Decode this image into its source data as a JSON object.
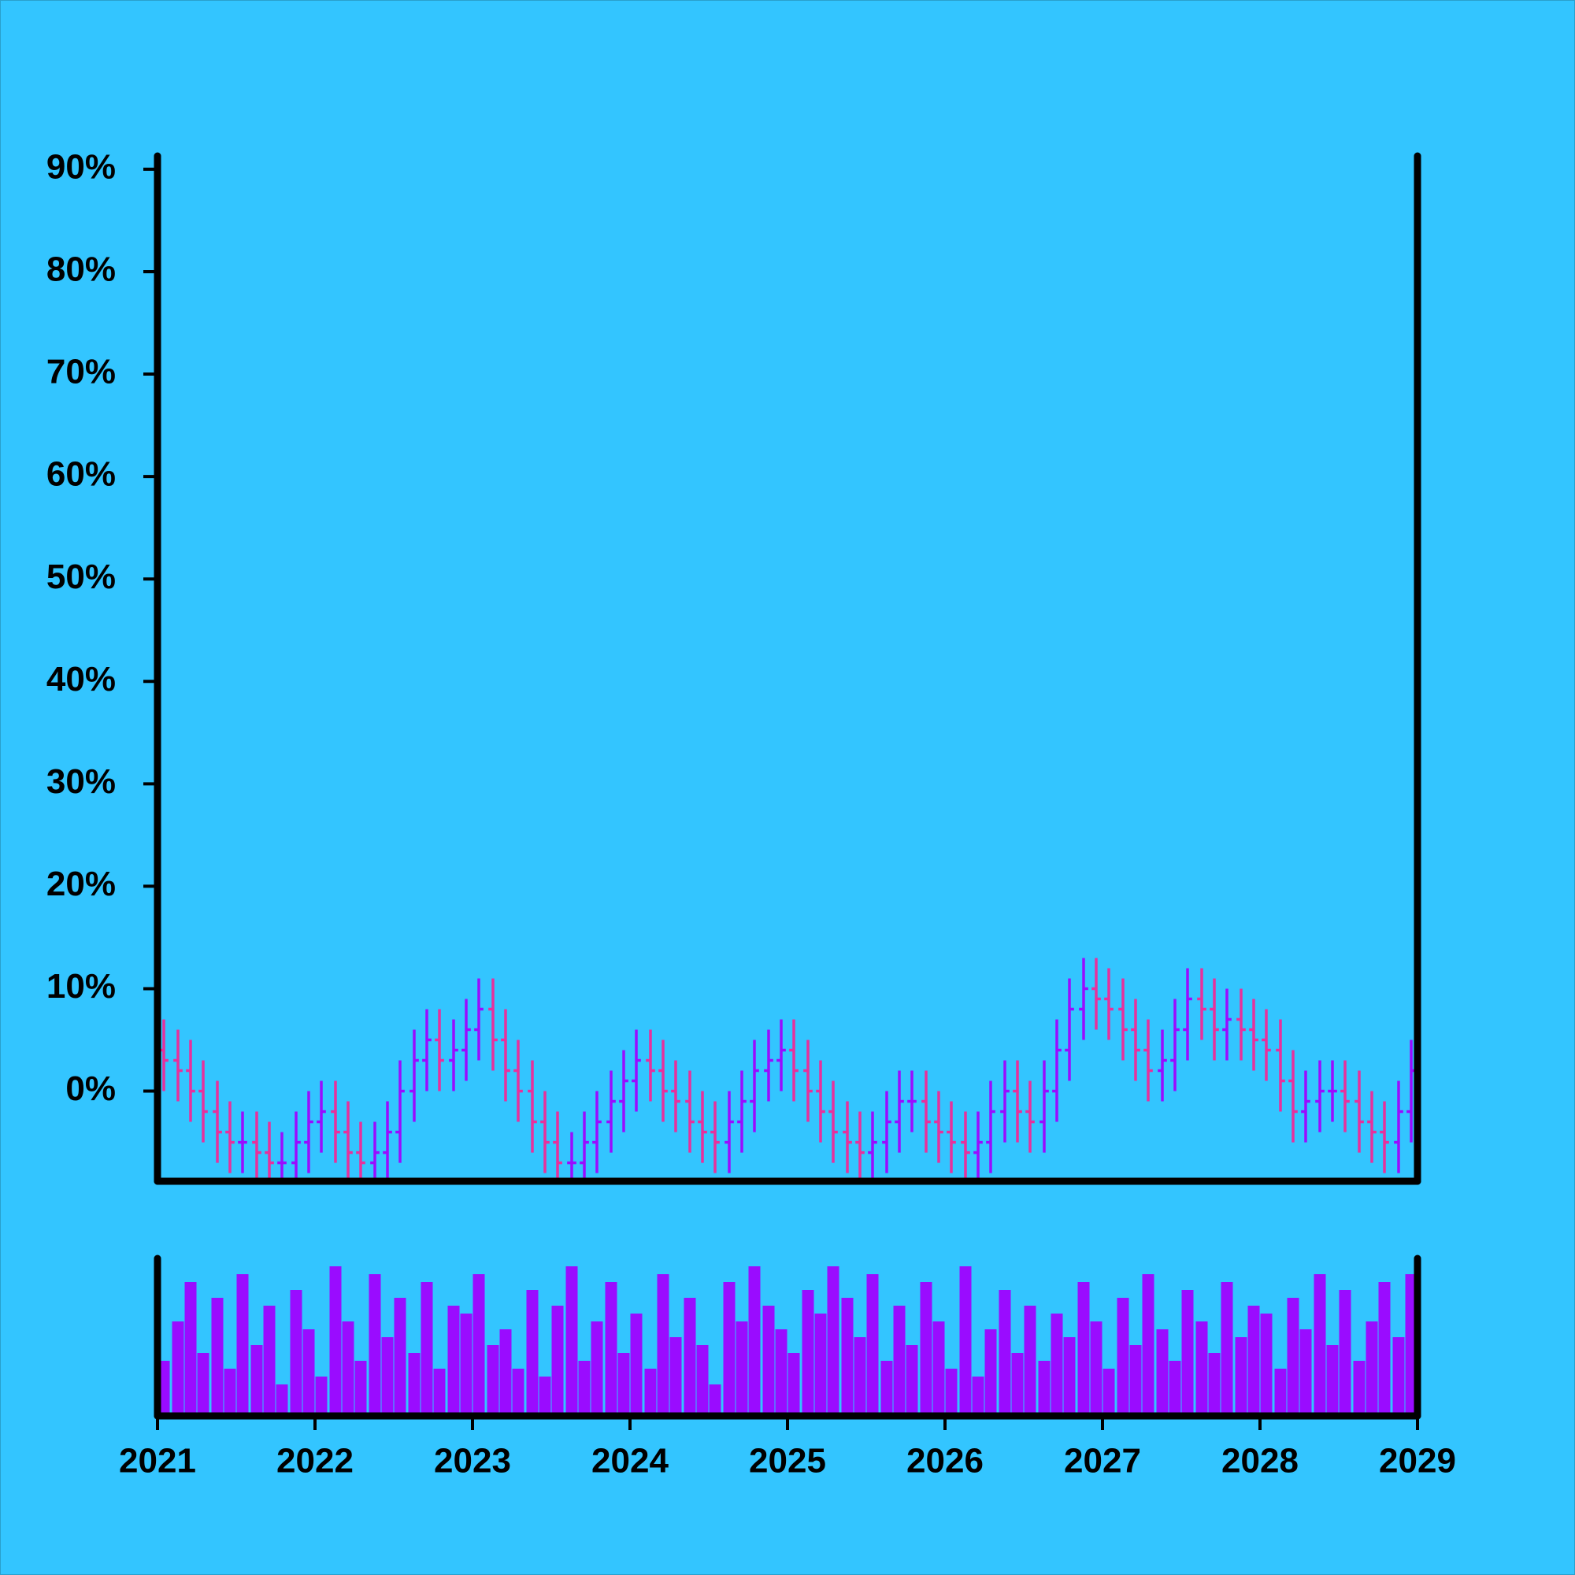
{
  "chart_data": {
    "type": "ohlc",
    "x": [
      2021.04,
      2021.13,
      2021.21,
      2021.29,
      2021.38,
      2021.46,
      2021.54,
      2021.63,
      2021.71,
      2021.79,
      2021.88,
      2021.96,
      2022.04,
      2022.13,
      2022.21,
      2022.29,
      2022.38,
      2022.46,
      2022.54,
      2022.63,
      2022.71,
      2022.79,
      2022.88,
      2022.96,
      2023.04,
      2023.13,
      2023.21,
      2023.29,
      2023.38,
      2023.46,
      2023.54,
      2023.63,
      2023.71,
      2023.79,
      2023.88,
      2023.96,
      2024.04,
      2024.13,
      2024.21,
      2024.29,
      2024.38,
      2024.46,
      2024.54,
      2024.63,
      2024.71,
      2024.79,
      2024.88,
      2024.96,
      2025.04,
      2025.13,
      2025.21,
      2025.29,
      2025.38,
      2025.46,
      2025.54,
      2025.63,
      2025.71,
      2025.79,
      2025.88,
      2025.96,
      2026.04,
      2026.13,
      2026.21,
      2026.29,
      2026.38,
      2026.46,
      2026.54,
      2026.63,
      2026.71,
      2026.79,
      2026.88,
      2026.96,
      2027.04,
      2027.13,
      2027.21,
      2027.29,
      2027.38,
      2027.46,
      2027.54,
      2027.63,
      2027.71,
      2027.79,
      2027.88,
      2027.96,
      2028.04,
      2028.13,
      2028.21,
      2028.29,
      2028.38,
      2028.46,
      2028.54,
      2028.63,
      2028.71,
      2028.79,
      2028.88,
      2028.96
    ],
    "open": [
      4,
      3,
      2,
      0,
      -2,
      -4,
      -5,
      -5,
      -6,
      -7,
      -7,
      -5,
      -3,
      -2,
      -4,
      -6,
      -7,
      -6,
      -4,
      0,
      3,
      5,
      3,
      4,
      6,
      8,
      5,
      2,
      0,
      -3,
      -5,
      -7,
      -7,
      -5,
      -3,
      -1,
      1,
      3,
      2,
      0,
      -1,
      -3,
      -4,
      -5,
      -3,
      -1,
      2,
      3,
      4,
      2,
      0,
      -2,
      -4,
      -5,
      -6,
      -5,
      -3,
      -1,
      -1,
      -3,
      -4,
      -5,
      -6,
      -5,
      -2,
      0,
      -2,
      -3,
      0,
      4,
      8,
      10,
      9,
      8,
      6,
      4,
      2,
      3,
      6,
      9,
      8,
      6,
      7,
      6,
      5,
      4,
      1,
      -2,
      -1,
      0,
      0,
      -1,
      -3,
      -4,
      -5,
      -2
    ],
    "high": [
      7,
      6,
      5,
      3,
      1,
      -1,
      -2,
      -2,
      -3,
      -4,
      -2,
      0,
      1,
      1,
      -1,
      -3,
      -3,
      -1,
      3,
      6,
      8,
      8,
      7,
      9,
      11,
      11,
      8,
      5,
      3,
      0,
      -2,
      -4,
      -2,
      0,
      2,
      4,
      6,
      6,
      5,
      3,
      2,
      0,
      -1,
      0,
      2,
      5,
      6,
      7,
      7,
      5,
      3,
      1,
      -1,
      -2,
      -2,
      0,
      2,
      2,
      2,
      0,
      -1,
      -2,
      -2,
      1,
      3,
      3,
      1,
      3,
      7,
      11,
      13,
      13,
      12,
      11,
      9,
      7,
      6,
      9,
      12,
      12,
      11,
      10,
      10,
      9,
      8,
      7,
      4,
      2,
      3,
      3,
      3,
      2,
      0,
      -1,
      1,
      5
    ],
    "low": [
      0,
      -1,
      -3,
      -5,
      -7,
      -8,
      -8,
      -9,
      -10,
      -10,
      -10,
      -8,
      -6,
      -7,
      -9,
      -10,
      -10,
      -9,
      -7,
      -3,
      0,
      0,
      0,
      1,
      3,
      2,
      -1,
      -3,
      -6,
      -8,
      -10,
      -10,
      -10,
      -8,
      -6,
      -4,
      -2,
      -1,
      -3,
      -4,
      -6,
      -7,
      -8,
      -8,
      -6,
      -4,
      -1,
      0,
      -1,
      -3,
      -5,
      -7,
      -8,
      -9,
      -9,
      -8,
      -6,
      -4,
      -6,
      -7,
      -8,
      -9,
      -9,
      -8,
      -5,
      -5,
      -6,
      -6,
      -3,
      1,
      5,
      6,
      5,
      3,
      1,
      -1,
      -1,
      0,
      3,
      5,
      3,
      3,
      3,
      2,
      1,
      -2,
      -5,
      -5,
      -4,
      -3,
      -4,
      -6,
      -7,
      -8,
      -8,
      -5
    ],
    "close": [
      3,
      2,
      0,
      -2,
      -4,
      -5,
      -5,
      -6,
      -7,
      -7,
      -5,
      -3,
      -2,
      -4,
      -6,
      -7,
      -6,
      -4,
      0,
      3,
      5,
      3,
      4,
      6,
      8,
      5,
      2,
      0,
      -3,
      -5,
      -7,
      -7,
      -5,
      -3,
      -1,
      1,
      3,
      2,
      0,
      -1,
      -3,
      -4,
      -5,
      -3,
      -1,
      2,
      3,
      4,
      2,
      0,
      -2,
      -4,
      -5,
      -6,
      -5,
      -3,
      -1,
      -1,
      -3,
      -4,
      -5,
      -6,
      -5,
      -2,
      0,
      -2,
      -3,
      0,
      4,
      8,
      10,
      9,
      8,
      6,
      4,
      2,
      3,
      6,
      9,
      8,
      6,
      7,
      6,
      5,
      4,
      1,
      -2,
      -1,
      0,
      0,
      -1,
      -3,
      -4,
      -5,
      -2,
      2
    ],
    "volume": [
      35,
      60,
      85,
      40,
      75,
      30,
      90,
      45,
      70,
      20,
      80,
      55,
      25,
      95,
      60,
      35,
      90,
      50,
      75,
      40,
      85,
      30,
      70,
      65,
      90,
      45,
      55,
      30,
      80,
      25,
      70,
      95,
      35,
      60,
      85,
      40,
      65,
      30,
      90,
      50,
      75,
      45,
      20,
      85,
      60,
      95,
      70,
      55,
      40,
      80,
      65,
      95,
      75,
      50,
      90,
      35,
      70,
      45,
      85,
      60,
      30,
      95,
      25,
      55,
      80,
      40,
      70,
      35,
      65,
      50,
      85,
      60,
      30,
      75,
      45,
      90,
      55,
      35,
      80,
      60,
      40,
      85,
      50,
      70,
      65,
      30,
      75,
      55,
      90,
      45,
      80,
      35,
      60,
      85,
      50,
      90
    ],
    "up_color": "#9a0cff",
    "down_color": "#e8309c",
    "volume_color": "#9a0cff",
    "xlim": [
      2021,
      2029
    ],
    "xticks": [
      2021,
      2022,
      2023,
      2024,
      2025,
      2026,
      2027,
      2028,
      2029
    ],
    "ylim": [
      -8.8,
      91.3
    ],
    "yticks": [
      {
        "value": 0,
        "label": "0%"
      },
      {
        "value": 10,
        "label": "10%"
      },
      {
        "value": 20,
        "label": "20%"
      },
      {
        "value": 30,
        "label": "30%"
      },
      {
        "value": 40,
        "label": "40%"
      },
      {
        "value": 50,
        "label": "50%"
      },
      {
        "value": 60,
        "label": "60%"
      },
      {
        "value": 70,
        "label": "70%"
      },
      {
        "value": 80,
        "label": "80%"
      },
      {
        "value": 90,
        "label": "90%"
      }
    ],
    "volume_ylim": [
      0,
      100
    ]
  }
}
